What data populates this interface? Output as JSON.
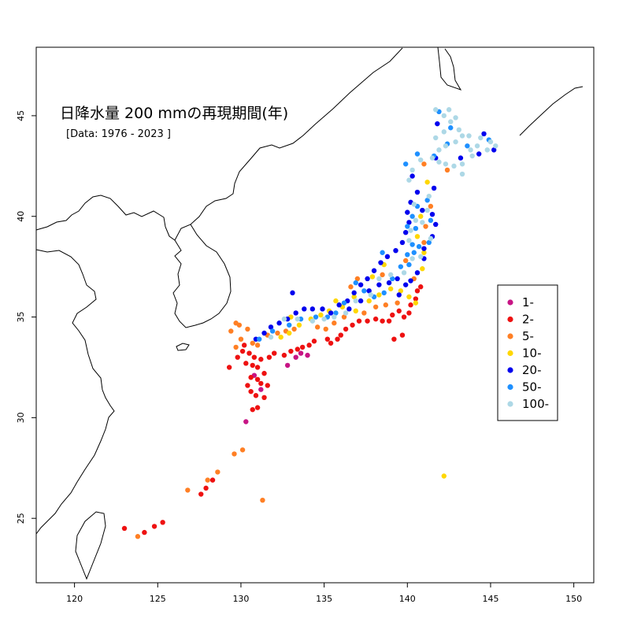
{
  "title": "日降水量 200 mmの再現期間(年)",
  "subtitle": "[Data: 1976 - 2023 ]",
  "x_ticks": [
    "120",
    "125",
    "130",
    "135",
    "140",
    "145",
    "150"
  ],
  "y_ticks": [
    "25",
    "30",
    "35",
    "40",
    "45"
  ],
  "legend": [
    {
      "label": "1-",
      "color": "#c71585"
    },
    {
      "label": "2-",
      "color": "#ee1111"
    },
    {
      "label": "5-",
      "color": "#ff7f24"
    },
    {
      "label": "10-",
      "color": "#ffd700"
    },
    {
      "label": "20-",
      "color": "#0000ee"
    },
    {
      "label": "50-",
      "color": "#1e90ff"
    },
    {
      "label": "100-",
      "color": "#add8e6"
    }
  ],
  "chart_data": {
    "type": "scatter",
    "xlim": [
      117.7,
      151.2
    ],
    "ylim": [
      21.8,
      48.4
    ],
    "grid": false,
    "legend_position": "right",
    "series": [
      {
        "name": "1-",
        "points": [
          [
            130.3,
            29.8
          ],
          [
            132.8,
            32.6
          ],
          [
            133.3,
            33.0
          ],
          [
            133.6,
            33.2
          ],
          [
            130.8,
            32.1
          ],
          [
            131.2,
            31.4
          ],
          [
            134.0,
            33.1
          ]
        ]
      },
      {
        "name": "2-",
        "points": [
          [
            130.2,
            33.6
          ],
          [
            130.5,
            33.2
          ],
          [
            130.8,
            33.0
          ],
          [
            131.0,
            32.5
          ],
          [
            130.6,
            32.0
          ],
          [
            130.4,
            31.6
          ],
          [
            130.6,
            31.3
          ],
          [
            130.9,
            31.1
          ],
          [
            131.2,
            31.7
          ],
          [
            131.4,
            32.2
          ],
          [
            131.0,
            31.9
          ],
          [
            130.7,
            32.6
          ],
          [
            131.2,
            32.9
          ],
          [
            131.7,
            33.0
          ],
          [
            132.0,
            33.2
          ],
          [
            132.6,
            33.1
          ],
          [
            133.0,
            33.3
          ],
          [
            133.4,
            33.4
          ],
          [
            133.7,
            33.5
          ],
          [
            134.1,
            33.6
          ],
          [
            134.4,
            33.8
          ],
          [
            135.2,
            33.9
          ],
          [
            135.4,
            33.7
          ],
          [
            135.8,
            33.9
          ],
          [
            136.0,
            34.1
          ],
          [
            136.3,
            34.4
          ],
          [
            136.7,
            34.6
          ],
          [
            137.1,
            34.8
          ],
          [
            137.6,
            34.8
          ],
          [
            138.1,
            34.9
          ],
          [
            138.5,
            34.8
          ],
          [
            138.9,
            34.8
          ],
          [
            139.1,
            35.1
          ],
          [
            139.5,
            35.3
          ],
          [
            139.8,
            35.0
          ],
          [
            140.1,
            35.2
          ],
          [
            139.2,
            33.9
          ],
          [
            139.7,
            34.1
          ],
          [
            140.2,
            35.6
          ],
          [
            140.5,
            35.9
          ],
          [
            140.6,
            36.3
          ],
          [
            140.8,
            36.5
          ],
          [
            123.0,
            24.5
          ],
          [
            124.2,
            24.3
          ],
          [
            124.8,
            24.6
          ],
          [
            125.3,
            24.8
          ],
          [
            127.6,
            26.2
          ],
          [
            127.9,
            26.5
          ],
          [
            128.3,
            26.9
          ],
          [
            131.6,
            31.6
          ],
          [
            131.4,
            31.0
          ],
          [
            130.7,
            30.4
          ],
          [
            131.0,
            30.5
          ],
          [
            130.1,
            33.3
          ],
          [
            129.8,
            33.0
          ],
          [
            130.3,
            32.7
          ],
          [
            129.3,
            32.5
          ]
        ]
      },
      {
        "name": "5-",
        "points": [
          [
            129.4,
            34.3
          ],
          [
            129.9,
            34.6
          ],
          [
            129.7,
            33.5
          ],
          [
            130.0,
            33.9
          ],
          [
            130.7,
            33.7
          ],
          [
            131.0,
            33.6
          ],
          [
            131.6,
            34.1
          ],
          [
            132.2,
            34.2
          ],
          [
            132.7,
            34.3
          ],
          [
            133.2,
            34.4
          ],
          [
            134.6,
            34.5
          ],
          [
            135.1,
            34.4
          ],
          [
            135.6,
            34.7
          ],
          [
            136.2,
            35.0
          ],
          [
            137.4,
            35.2
          ],
          [
            138.1,
            35.5
          ],
          [
            138.7,
            35.6
          ],
          [
            139.4,
            35.7
          ],
          [
            140.4,
            36.9
          ],
          [
            141.0,
            38.7
          ],
          [
            141.1,
            39.5
          ],
          [
            141.4,
            40.5
          ],
          [
            141.0,
            42.6
          ],
          [
            142.4,
            42.3
          ],
          [
            136.6,
            36.5
          ],
          [
            137.0,
            36.9
          ],
          [
            138.5,
            37.1
          ],
          [
            139.9,
            37.8
          ],
          [
            130.1,
            28.4
          ],
          [
            129.6,
            28.2
          ],
          [
            128.6,
            27.3
          ],
          [
            128.0,
            26.9
          ],
          [
            126.8,
            26.4
          ],
          [
            123.8,
            24.1
          ],
          [
            131.3,
            25.9
          ],
          [
            129.7,
            34.7
          ],
          [
            130.4,
            34.4
          ]
        ]
      },
      {
        "name": "10-",
        "points": [
          [
            132.4,
            34.0
          ],
          [
            132.9,
            34.2
          ],
          [
            133.5,
            34.6
          ],
          [
            134.2,
            34.9
          ],
          [
            134.8,
            35.1
          ],
          [
            135.3,
            35.3
          ],
          [
            136.1,
            35.5
          ],
          [
            136.9,
            35.3
          ],
          [
            137.7,
            35.8
          ],
          [
            138.3,
            36.1
          ],
          [
            139.0,
            36.4
          ],
          [
            139.6,
            36.3
          ],
          [
            140.1,
            36.0
          ],
          [
            140.5,
            35.7
          ],
          [
            140.9,
            37.4
          ],
          [
            141.0,
            38.2
          ],
          [
            140.6,
            39.0
          ],
          [
            140.8,
            40.0
          ],
          [
            141.2,
            41.7
          ],
          [
            137.9,
            37.0
          ],
          [
            138.6,
            37.6
          ],
          [
            136.8,
            36.0
          ],
          [
            135.7,
            35.8
          ],
          [
            142.2,
            27.1
          ],
          [
            133.0,
            35.0
          ]
        ]
      },
      {
        "name": "20-",
        "points": [
          [
            130.9,
            33.9
          ],
          [
            131.4,
            34.2
          ],
          [
            131.8,
            34.5
          ],
          [
            132.3,
            34.7
          ],
          [
            132.8,
            34.9
          ],
          [
            133.3,
            35.2
          ],
          [
            133.8,
            35.4
          ],
          [
            134.3,
            35.4
          ],
          [
            134.9,
            35.4
          ],
          [
            135.4,
            35.2
          ],
          [
            135.9,
            35.6
          ],
          [
            136.4,
            35.8
          ],
          [
            136.8,
            36.2
          ],
          [
            137.2,
            36.6
          ],
          [
            137.6,
            36.9
          ],
          [
            138.0,
            37.3
          ],
          [
            138.4,
            37.7
          ],
          [
            138.8,
            38.0
          ],
          [
            139.3,
            38.3
          ],
          [
            139.7,
            38.7
          ],
          [
            139.9,
            39.2
          ],
          [
            140.1,
            39.7
          ],
          [
            140.0,
            40.2
          ],
          [
            140.2,
            40.7
          ],
          [
            140.6,
            41.2
          ],
          [
            140.9,
            40.3
          ],
          [
            141.5,
            40.1
          ],
          [
            141.7,
            39.6
          ],
          [
            141.5,
            39.0
          ],
          [
            141.0,
            38.4
          ],
          [
            141.0,
            37.9
          ],
          [
            140.6,
            37.2
          ],
          [
            140.2,
            36.8
          ],
          [
            139.9,
            36.6
          ],
          [
            139.4,
            36.9
          ],
          [
            138.9,
            36.7
          ],
          [
            138.3,
            36.6
          ],
          [
            137.7,
            36.3
          ],
          [
            137.2,
            35.8
          ],
          [
            136.5,
            35.4
          ],
          [
            140.3,
            42.0
          ],
          [
            141.7,
            42.9
          ],
          [
            143.2,
            42.9
          ],
          [
            144.3,
            43.1
          ],
          [
            145.2,
            43.3
          ],
          [
            144.6,
            44.1
          ],
          [
            141.8,
            44.6
          ],
          [
            133.1,
            36.2
          ],
          [
            139.5,
            36.1
          ],
          [
            141.6,
            41.4
          ]
        ]
      },
      {
        "name": "50-",
        "points": [
          [
            131.1,
            33.9
          ],
          [
            131.9,
            34.3
          ],
          [
            132.9,
            34.6
          ],
          [
            133.6,
            34.9
          ],
          [
            134.5,
            35.0
          ],
          [
            135.2,
            35.0
          ],
          [
            135.7,
            35.2
          ],
          [
            136.2,
            35.7
          ],
          [
            136.9,
            36.7
          ],
          [
            137.4,
            36.3
          ],
          [
            138.0,
            36.0
          ],
          [
            138.6,
            36.2
          ],
          [
            139.1,
            36.9
          ],
          [
            139.6,
            37.5
          ],
          [
            140.1,
            37.6
          ],
          [
            140.4,
            38.2
          ],
          [
            140.3,
            38.6
          ],
          [
            140.7,
            38.5
          ],
          [
            140.5,
            39.4
          ],
          [
            140.3,
            40.0
          ],
          [
            140.6,
            40.5
          ],
          [
            141.2,
            40.8
          ],
          [
            141.4,
            39.8
          ],
          [
            141.3,
            38.7
          ],
          [
            140.0,
            38.1
          ],
          [
            138.5,
            38.2
          ],
          [
            140.0,
            39.5
          ],
          [
            141.6,
            43.0
          ],
          [
            142.4,
            43.6
          ],
          [
            143.6,
            43.5
          ],
          [
            144.9,
            43.8
          ],
          [
            141.9,
            45.2
          ],
          [
            142.6,
            44.4
          ],
          [
            139.9,
            42.6
          ],
          [
            140.6,
            43.1
          ]
        ]
      },
      {
        "name": "100-",
        "points": [
          [
            141.7,
            45.3
          ],
          [
            142.2,
            45.0
          ],
          [
            142.6,
            44.7
          ],
          [
            143.1,
            44.3
          ],
          [
            143.7,
            44.0
          ],
          [
            144.4,
            43.9
          ],
          [
            145.0,
            43.7
          ],
          [
            145.3,
            43.5
          ],
          [
            144.8,
            43.3
          ],
          [
            143.9,
            43.0
          ],
          [
            143.3,
            42.6
          ],
          [
            142.8,
            42.5
          ],
          [
            142.3,
            42.6
          ],
          [
            141.9,
            42.7
          ],
          [
            141.5,
            42.9
          ],
          [
            141.9,
            43.3
          ],
          [
            142.3,
            43.5
          ],
          [
            142.9,
            43.7
          ],
          [
            143.3,
            44.0
          ],
          [
            142.2,
            44.2
          ],
          [
            141.7,
            43.9
          ],
          [
            143.8,
            43.3
          ],
          [
            144.2,
            43.5
          ],
          [
            142.9,
            44.9
          ],
          [
            142.5,
            45.3
          ],
          [
            140.8,
            42.8
          ],
          [
            140.3,
            42.3
          ],
          [
            140.1,
            41.8
          ],
          [
            140.4,
            40.6
          ],
          [
            140.5,
            39.8
          ],
          [
            140.2,
            39.3
          ],
          [
            140.1,
            38.8
          ],
          [
            140.3,
            37.9
          ],
          [
            139.8,
            37.2
          ],
          [
            139.0,
            37.1
          ],
          [
            138.3,
            36.9
          ],
          [
            137.8,
            36.1
          ],
          [
            136.9,
            35.8
          ],
          [
            136.3,
            35.2
          ],
          [
            135.6,
            35.0
          ],
          [
            135.0,
            34.9
          ],
          [
            134.3,
            34.8
          ],
          [
            133.4,
            34.9
          ],
          [
            132.6,
            34.9
          ],
          [
            131.8,
            34.0
          ],
          [
            141.3,
            41.0
          ],
          [
            141.2,
            40.3
          ],
          [
            140.9,
            39.7
          ],
          [
            141.4,
            38.9
          ],
          [
            140.8,
            38.0
          ],
          [
            143.3,
            42.1
          ]
        ]
      }
    ]
  }
}
